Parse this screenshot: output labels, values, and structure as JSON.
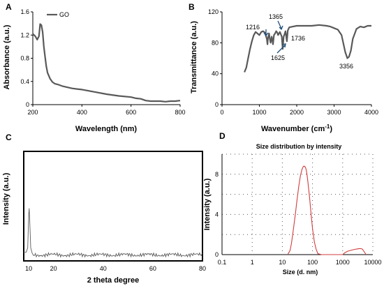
{
  "chart_data": [
    {
      "panel": "A",
      "type": "line",
      "xlabel": "Wavelength (nm)",
      "ylabel": "Absorbance (a.u.)",
      "xlim": [
        200,
        800
      ],
      "ylim": [
        0,
        1.6
      ],
      "xticks": [
        200,
        400,
        600,
        800
      ],
      "yticks": [
        0,
        0.4,
        0.8,
        1.2,
        1.6
      ],
      "ytick_labels": [
        "0",
        "0.4",
        "0.8",
        "1.2",
        "1.6"
      ],
      "legend": "top-left",
      "series": [
        {
          "name": "GO",
          "color": "#595959",
          "x": [
            200,
            210,
            218,
            225,
            230,
            235,
            240,
            245,
            250,
            255,
            260,
            270,
            280,
            290,
            300,
            320,
            340,
            360,
            380,
            400,
            450,
            500,
            550,
            600,
            620,
            640,
            660,
            680,
            700,
            720,
            740,
            760,
            780,
            800
          ],
          "y": [
            1.22,
            1.18,
            1.12,
            1.18,
            1.39,
            1.37,
            1.25,
            1.0,
            0.82,
            0.66,
            0.55,
            0.45,
            0.39,
            0.36,
            0.35,
            0.32,
            0.3,
            0.28,
            0.27,
            0.26,
            0.22,
            0.18,
            0.15,
            0.13,
            0.11,
            0.1,
            0.07,
            0.06,
            0.06,
            0.06,
            0.05,
            0.06,
            0.06,
            0.07
          ]
        }
      ]
    },
    {
      "panel": "B",
      "type": "line",
      "xlabel": "Wavenumber (cm",
      "xlabel_sup": "-1",
      "xlabel_close": ")",
      "ylabel": "Transmittance (a.u.)",
      "xlim": [
        0,
        4000
      ],
      "ylim": [
        0,
        120
      ],
      "xticks": [
        0,
        1000,
        2000,
        3000,
        4000
      ],
      "yticks": [
        0,
        40,
        80,
        120
      ],
      "annotations": [
        {
          "text": "1216",
          "x": 1216
        },
        {
          "text": "1365",
          "x": 1365
        },
        {
          "text": "1736",
          "x": 1736
        },
        {
          "text": "1625",
          "x": 1625
        },
        {
          "text": "3356",
          "x": 3356
        }
      ],
      "series": [
        {
          "color": "#595959",
          "x": [
            600,
            650,
            700,
            750,
            800,
            850,
            900,
            950,
            1000,
            1050,
            1100,
            1150,
            1200,
            1216,
            1230,
            1260,
            1280,
            1300,
            1330,
            1365,
            1390,
            1420,
            1450,
            1480,
            1500,
            1550,
            1600,
            1625,
            1650,
            1680,
            1700,
            1736,
            1760,
            1800,
            1900,
            2000,
            2200,
            2400,
            2600,
            2800,
            2900,
            3000,
            3100,
            3200,
            3300,
            3356,
            3400,
            3450,
            3500,
            3600,
            3700,
            3800,
            3900,
            4000
          ],
          "y": [
            42,
            48,
            60,
            72,
            82,
            90,
            94,
            92,
            90,
            94,
            95,
            93,
            85,
            78,
            86,
            92,
            85,
            80,
            88,
            78,
            90,
            92,
            95,
            93,
            90,
            94,
            88,
            72,
            88,
            92,
            95,
            82,
            96,
            100,
            101,
            102,
            102,
            102,
            103,
            102,
            101,
            99,
            97,
            90,
            68,
            60,
            62,
            70,
            85,
            98,
            101,
            100,
            102,
            102
          ]
        }
      ]
    },
    {
      "panel": "C",
      "type": "line",
      "xlabel": "2 theta degree",
      "ylabel": "Intensity (a.u.)",
      "xlim": [
        8,
        80
      ],
      "xticks": [
        10,
        20,
        40,
        60,
        80
      ],
      "frame": "box",
      "series": [
        {
          "color": "#595959",
          "x": [
            8,
            9,
            9.6,
            10,
            10.2,
            10.4,
            10.8,
            11.4,
            12,
            20,
            30,
            40,
            50,
            60,
            70,
            80
          ],
          "y": [
            0.08,
            0.08,
            0.12,
            0.42,
            0.48,
            0.38,
            0.12,
            0.07,
            0.06,
            0.06,
            0.06,
            0.06,
            0.06,
            0.06,
            0.06,
            0.06
          ]
        }
      ]
    },
    {
      "panel": "D",
      "type": "line",
      "title": "Size distribution by intensity",
      "xlabel": "Size (d. nm)",
      "ylabel": "Intensity (a.u.)",
      "xscale": "log",
      "xlim": [
        0.1,
        10000
      ],
      "ylim": [
        0,
        10
      ],
      "xticks": [
        0.1,
        1,
        10,
        100,
        1000,
        10000
      ],
      "xtick_labels": [
        "0.1",
        "1",
        "10",
        "100",
        "1000",
        "10000"
      ],
      "yticks": [
        0,
        4,
        8
      ],
      "grid": "dotted",
      "series": [
        {
          "color": "#d23c3c",
          "x": [
            15,
            18,
            20,
            23,
            27,
            30,
            35,
            40,
            45,
            50,
            55,
            60,
            65,
            70,
            80,
            90,
            100,
            115,
            130,
            150,
            200,
            1000,
            1200,
            1500,
            2000,
            2500,
            3000,
            3500,
            4000,
            4500,
            5000,
            6000
          ],
          "y": [
            0,
            0.4,
            1.1,
            2.4,
            4.0,
            5.2,
            6.8,
            7.9,
            8.5,
            8.8,
            8.8,
            8.6,
            8.1,
            7.3,
            5.7,
            4.0,
            2.6,
            1.3,
            0.6,
            0.1,
            0,
            0,
            0.2,
            0.35,
            0.45,
            0.52,
            0.56,
            0.6,
            0.6,
            0.55,
            0.35,
            0
          ]
        }
      ]
    }
  ]
}
